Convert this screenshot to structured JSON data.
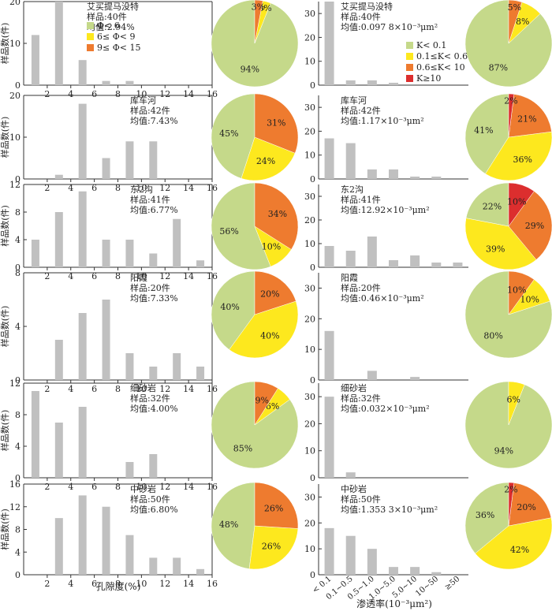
{
  "colors": {
    "bar": "#c0c0c0",
    "green": "#c5d98a",
    "yellow": "#fde81e",
    "orange": "#ee7b2f",
    "red": "#dc2e2e",
    "axis": "#333333"
  },
  "porosity": {
    "xlabel": "孔隙度(%)",
    "ylabel": "样品数(件)",
    "x_ticks": [
      "2",
      "4",
      "6",
      "8",
      "10",
      "12",
      "14",
      "16"
    ],
    "legend": [
      {
        "label": "Φ< 6",
        "color": "green"
      },
      {
        "label": "6≤ Φ< 9",
        "color": "yellow"
      },
      {
        "label": "9≤ Φ< 15",
        "color": "orange"
      }
    ]
  },
  "permeability": {
    "xlabel": "渗透率(10⁻³μm²)",
    "categories": [
      "< 0.1",
      "0.1~0.5",
      "0.5~1.0",
      "1.0~5.0",
      "5.0~10",
      "10~50",
      "≥50"
    ],
    "legend": [
      {
        "label": "K< 0.1",
        "color": "green"
      },
      {
        "label": "0.1≤K< 0.6",
        "color": "yellow"
      },
      {
        "label": "0.6≤K< 10",
        "color": "orange"
      },
      {
        "label": "K≥10",
        "color": "red"
      }
    ]
  },
  "chart_data": [
    {
      "type": "bar",
      "panel": "porosity",
      "row": 0,
      "info": [
        "艾买提马没特",
        "样品:40件",
        "均值:2.94%"
      ],
      "x": [
        1,
        3,
        5,
        7,
        9,
        11
      ],
      "values": [
        12,
        20,
        6,
        1,
        1,
        0
      ],
      "ylim": [
        0,
        20
      ],
      "yticks": [
        0,
        10,
        20
      ],
      "pie": [
        {
          "value": 94,
          "label": "94%",
          "color": "green"
        },
        {
          "value": 3,
          "label": "3%",
          "color": "yellow"
        },
        {
          "value": 3,
          "label": "3%",
          "color": "orange"
        }
      ]
    },
    {
      "type": "bar",
      "panel": "permeability",
      "row": 0,
      "info": [
        "艾买提马没特",
        "样品:40件",
        "均值:0.097 8×10⁻³μm²"
      ],
      "values": [
        35,
        2,
        2,
        1,
        0,
        0,
        0
      ],
      "ylim": [
        0,
        35
      ],
      "yticks": [
        0,
        10,
        20,
        30
      ],
      "pie": [
        {
          "value": 87,
          "label": "87%",
          "color": "green"
        },
        {
          "value": 8,
          "label": "8%",
          "color": "yellow"
        },
        {
          "value": 5,
          "label": "5%",
          "color": "orange"
        }
      ]
    },
    {
      "type": "bar",
      "panel": "porosity",
      "row": 1,
      "info": [
        "库车河",
        "样品:42件",
        "均值:7.43%"
      ],
      "x": [
        1,
        3,
        5,
        7,
        9,
        11
      ],
      "values": [
        0,
        1,
        18,
        5,
        9,
        9
      ],
      "ylim": [
        0,
        20
      ],
      "yticks": [
        0,
        10,
        20
      ],
      "pie": [
        {
          "value": 45,
          "label": "45%",
          "color": "green"
        },
        {
          "value": 24,
          "label": "24%",
          "color": "yellow"
        },
        {
          "value": 31,
          "label": "31%",
          "color": "orange"
        }
      ]
    },
    {
      "type": "bar",
      "panel": "permeability",
      "row": 1,
      "info": [
        "库车河",
        "样品:42件",
        "均值:1.17×10⁻³μm²"
      ],
      "values": [
        17,
        15,
        4,
        4,
        1,
        1,
        0
      ],
      "ylim": [
        0,
        35
      ],
      "yticks": [
        0,
        10,
        20,
        30
      ],
      "pie": [
        {
          "value": 41,
          "label": "41%",
          "color": "green"
        },
        {
          "value": 36,
          "label": "36%",
          "color": "yellow"
        },
        {
          "value": 21,
          "label": "21%",
          "color": "orange"
        },
        {
          "value": 2,
          "label": "2%",
          "color": "red"
        }
      ]
    },
    {
      "type": "bar",
      "panel": "porosity",
      "row": 2,
      "info": [
        "东2沟",
        "样品:41件",
        "均值:6.77%"
      ],
      "x": [
        1,
        3,
        5,
        7,
        9,
        11,
        13,
        15
      ],
      "values": [
        4,
        8,
        11,
        4,
        4,
        2,
        7,
        1
      ],
      "ylim": [
        0,
        12
      ],
      "yticks": [
        0,
        4,
        8,
        12
      ],
      "pie": [
        {
          "value": 56,
          "label": "56%",
          "color": "green"
        },
        {
          "value": 10,
          "label": "10%",
          "color": "yellow"
        },
        {
          "value": 34,
          "label": "34%",
          "color": "orange"
        }
      ]
    },
    {
      "type": "bar",
      "panel": "permeability",
      "row": 2,
      "info": [
        "东2沟",
        "样品:41件",
        "均值:12.92×10⁻³μm²"
      ],
      "values": [
        9,
        7,
        13,
        3,
        5,
        2,
        2
      ],
      "ylim": [
        0,
        35
      ],
      "yticks": [
        0,
        10,
        20,
        30
      ],
      "pie": [
        {
          "value": 22,
          "label": "22%",
          "color": "green"
        },
        {
          "value": 39,
          "label": "39%",
          "color": "yellow"
        },
        {
          "value": 29,
          "label": "29%",
          "color": "orange"
        },
        {
          "value": 10,
          "label": "10%",
          "color": "red"
        }
      ]
    },
    {
      "type": "bar",
      "panel": "porosity",
      "row": 3,
      "info": [
        "阳霞",
        "样品:20件",
        "均值:7.33%"
      ],
      "x": [
        1,
        3,
        5,
        7,
        9,
        11,
        13,
        15
      ],
      "values": [
        0,
        3,
        5,
        6,
        2,
        1,
        2,
        1
      ],
      "ylim": [
        0,
        8
      ],
      "yticks": [
        0,
        4,
        8
      ],
      "pie": [
        {
          "value": 40,
          "label": "40%",
          "color": "green"
        },
        {
          "value": 40,
          "label": "40%",
          "color": "yellow"
        },
        {
          "value": 20,
          "label": "20%",
          "color": "orange"
        }
      ]
    },
    {
      "type": "bar",
      "panel": "permeability",
      "row": 3,
      "info": [
        "阳霞",
        "样品:20件",
        "均值:0.46×10⁻³μm²"
      ],
      "values": [
        16,
        0,
        3,
        0,
        1,
        0,
        0
      ],
      "ylim": [
        0,
        35
      ],
      "yticks": [
        0,
        10,
        20,
        30
      ],
      "pie": [
        {
          "value": 80,
          "label": "80%",
          "color": "green"
        },
        {
          "value": 10,
          "label": "10%",
          "color": "yellow"
        },
        {
          "value": 10,
          "label": "10%",
          "color": "orange"
        }
      ]
    },
    {
      "type": "bar",
      "panel": "porosity",
      "row": 4,
      "info": [
        "细砂岩",
        "样品:32件",
        "均值:4.00%"
      ],
      "x": [
        1,
        3,
        5,
        7,
        9,
        11
      ],
      "values": [
        11,
        7,
        9,
        0,
        2,
        3
      ],
      "ylim": [
        0,
        12
      ],
      "yticks": [
        0,
        4,
        8,
        12
      ],
      "pie": [
        {
          "value": 85,
          "label": "85%",
          "color": "green"
        },
        {
          "value": 6,
          "label": "6%",
          "color": "yellow"
        },
        {
          "value": 9,
          "label": "9%",
          "color": "orange"
        }
      ]
    },
    {
      "type": "bar",
      "panel": "permeability",
      "row": 4,
      "info": [
        "细砂岩",
        "样品:32件",
        "均值:0.032×10⁻³μm²"
      ],
      "values": [
        30,
        2,
        0,
        0,
        0,
        0,
        0
      ],
      "ylim": [
        0,
        35
      ],
      "yticks": [
        0,
        10,
        20,
        30
      ],
      "pie": [
        {
          "value": 94,
          "label": "94%",
          "color": "green"
        },
        {
          "value": 6,
          "label": "6%",
          "color": "yellow"
        }
      ]
    },
    {
      "type": "bar",
      "panel": "porosity",
      "row": 5,
      "info": [
        "中砂岩",
        "样品:50件",
        "均值:6.80%"
      ],
      "x": [
        1,
        3,
        5,
        7,
        9,
        11,
        13,
        15
      ],
      "values": [
        0,
        10,
        14,
        12,
        7,
        3,
        3,
        1
      ],
      "ylim": [
        0,
        16
      ],
      "yticks": [
        0,
        4,
        8,
        12,
        16
      ],
      "pie": [
        {
          "value": 48,
          "label": "48%",
          "color": "green"
        },
        {
          "value": 26,
          "label": "26%",
          "color": "yellow"
        },
        {
          "value": 26,
          "label": "26%",
          "color": "orange"
        }
      ]
    },
    {
      "type": "bar",
      "panel": "permeability",
      "row": 5,
      "info": [
        "中砂岩",
        "样品:50件",
        "均值:1.353 3×10⁻³μm²"
      ],
      "values": [
        18,
        15,
        10,
        3,
        3,
        1,
        0
      ],
      "ylim": [
        0,
        35
      ],
      "yticks": [
        0,
        10,
        20,
        30
      ],
      "pie": [
        {
          "value": 36,
          "label": "36%",
          "color": "green"
        },
        {
          "value": 42,
          "label": "42%",
          "color": "yellow"
        },
        {
          "value": 20,
          "label": "20%",
          "color": "orange"
        },
        {
          "value": 2,
          "label": "2%",
          "color": "red"
        }
      ]
    }
  ]
}
